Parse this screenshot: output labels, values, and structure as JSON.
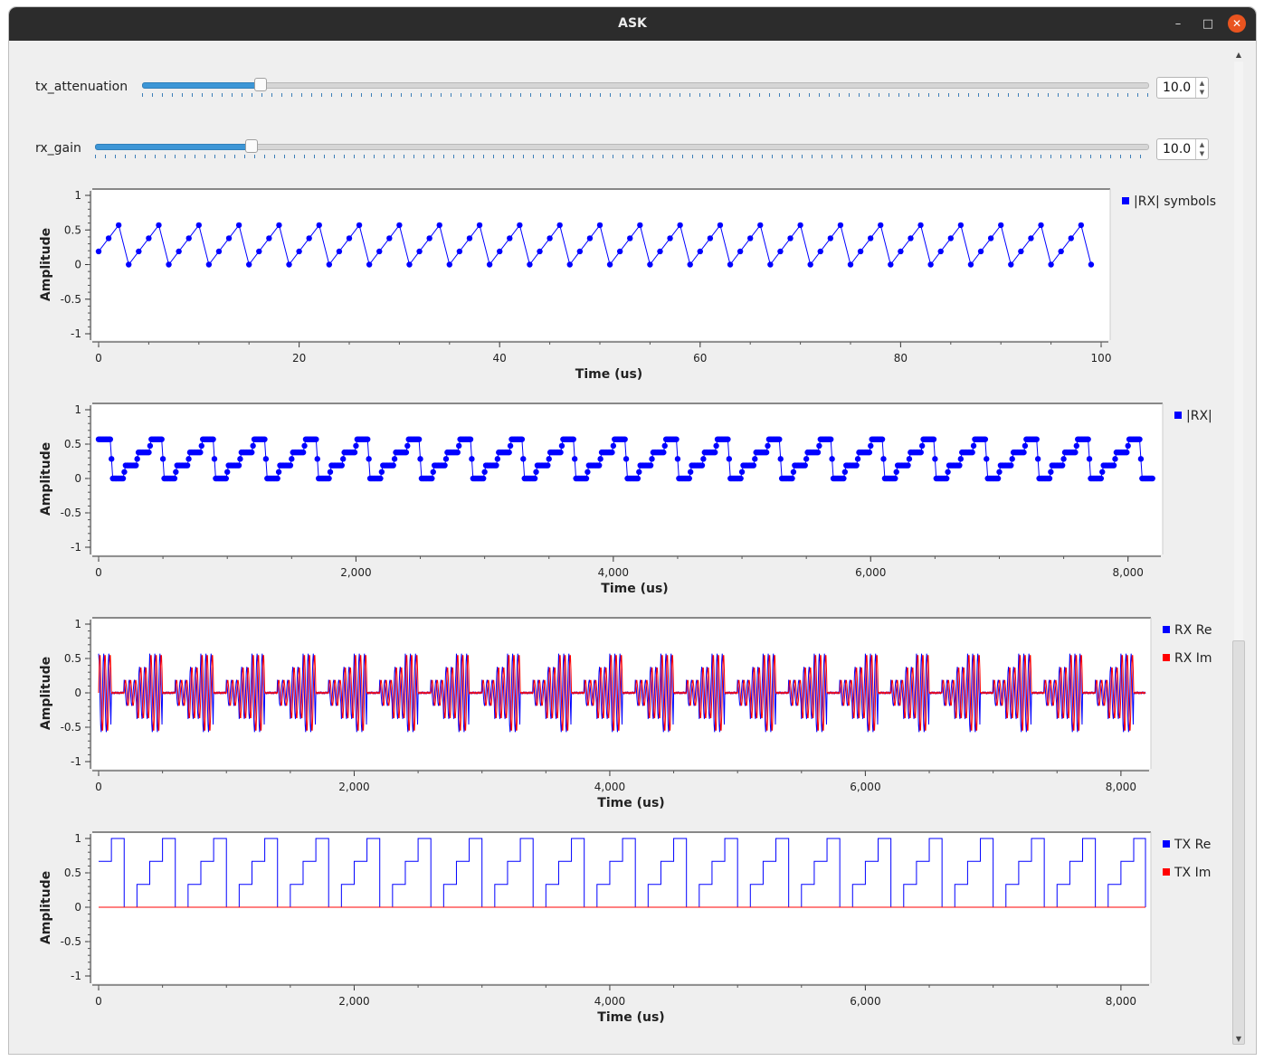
{
  "window": {
    "title": "ASK"
  },
  "controls": [
    {
      "label": "tx_attenuation",
      "value": "10.0",
      "fraction": 0.117
    },
    {
      "label": "rx_gain",
      "value": "10.0",
      "fraction": 0.148
    }
  ],
  "colors": {
    "blue": "#0000ff",
    "red": "#ff0000",
    "slider_fill": "#3d96d6",
    "title_bar": "#2c2c2c",
    "close_button": "#e9541f"
  },
  "icons": {
    "minimize": "minimize-icon",
    "maximize": "maximize-icon",
    "close": "close-icon"
  },
  "chart_data": [
    {
      "type": "line",
      "ylabel": "Amplitude",
      "xlabel": "Time (us)",
      "xlim": [
        0,
        100
      ],
      "ylim": [
        -1,
        1
      ],
      "xticks": [
        "0",
        "20",
        "40",
        "60",
        "80",
        "100"
      ],
      "yticks": [
        "1",
        "0.5",
        "0",
        "-0.5",
        "-1"
      ],
      "legend_position": "right",
      "markers": true,
      "series": [
        {
          "name": "|RX| symbols",
          "color": "#0000ff",
          "pattern": [
            0.19,
            0.38,
            0.57,
            0.0
          ],
          "x_step": 1.0,
          "x_end": 99,
          "values": [
            0.19,
            0.38,
            0.57,
            0.0,
            0.19,
            0.38,
            0.57,
            0.0,
            0.19,
            0.38,
            0.57,
            0.0,
            "..."
          ]
        }
      ]
    },
    {
      "type": "line",
      "ylabel": "Amplitude",
      "xlabel": "Time (us)",
      "xlim": [
        0,
        8192
      ],
      "ylim": [
        -1,
        1
      ],
      "xticks": [
        "0",
        "2,000",
        "4,000",
        "6,000",
        "8,000"
      ],
      "yticks": [
        "1",
        "0.5",
        "0",
        "-0.5",
        "-1"
      ],
      "legend_position": "right",
      "markers": true,
      "series": [
        {
          "name": "|RX|",
          "color": "#0000ff",
          "levels": [
            0.0,
            0.19,
            0.38,
            0.57
          ],
          "symbol_period": 100,
          "start_level": 0.57,
          "x_end": 8192
        }
      ]
    },
    {
      "type": "line",
      "ylabel": "Amplitude",
      "xlabel": "Time (us)",
      "xlim": [
        0,
        8192
      ],
      "ylim": [
        -1,
        1
      ],
      "xticks": [
        "0",
        "2,000",
        "4,000",
        "6,000",
        "8,000"
      ],
      "yticks": [
        "1",
        "0.5",
        "0",
        "-0.5",
        "-1"
      ],
      "legend_position": "right",
      "series": [
        {
          "name": "RX Re",
          "color": "#0000ff",
          "peak_amplitude": 0.57,
          "carrier_period": 40
        },
        {
          "name": "RX Im",
          "color": "#ff0000",
          "peak_amplitude": 0.57,
          "carrier_period": 40
        }
      ]
    },
    {
      "type": "line",
      "ylabel": "Amplitude",
      "xlabel": "Time (us)",
      "xlim": [
        0,
        8192
      ],
      "ylim": [
        -1,
        1
      ],
      "xticks": [
        "0",
        "2,000",
        "4,000",
        "6,000",
        "8,000"
      ],
      "yticks": [
        "1",
        "0.5",
        "0",
        "-0.5",
        "-1"
      ],
      "legend_position": "right",
      "series": [
        {
          "name": "TX Re",
          "color": "#0000ff",
          "levels": [
            0.667,
            1.0,
            0.0,
            0.333
          ],
          "symbol_period": 100,
          "x_end": 8192
        },
        {
          "name": "TX Im",
          "color": "#ff0000",
          "constant": 0
        }
      ]
    }
  ]
}
